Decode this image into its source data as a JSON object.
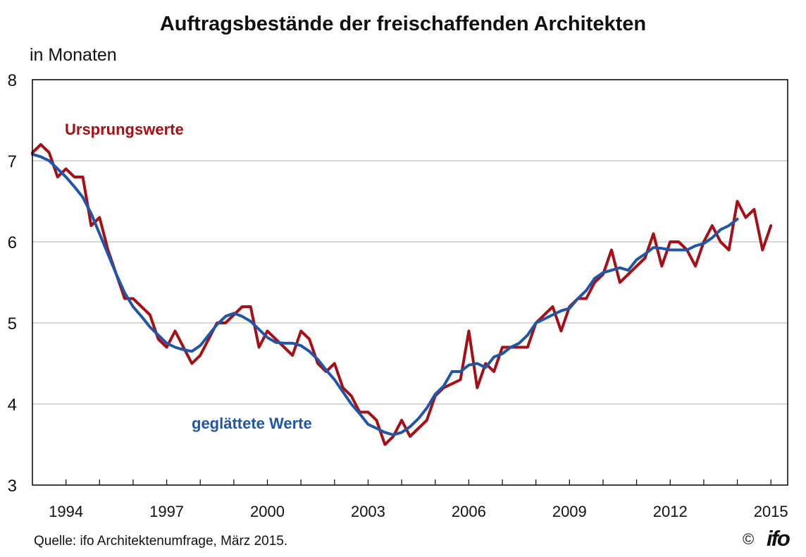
{
  "title": "Auftragsbestände der freischaffenden Architekten",
  "source": "Quelle: ifo Architektenumfrage, März 2015.",
  "copyright": "©",
  "logo": "ifo",
  "colors": {
    "raw": "#a50f15",
    "smoothed": "#1f56a8",
    "grid": "#c8c8c8",
    "axis": "#000000"
  },
  "chart_data": {
    "type": "line",
    "title": "Auftragsbestände der freischaffenden Architekten",
    "ylabel": "in Monaten",
    "xlabel": "",
    "ylim": [
      3,
      8
    ],
    "xlim": [
      1993.0,
      2015.5
    ],
    "yticks": [
      "3",
      "4",
      "5",
      "6",
      "7",
      "8"
    ],
    "xticks": [
      "1994",
      "1997",
      "2000",
      "2003",
      "2006",
      "2009",
      "2012",
      "2015"
    ],
    "grid": "horizontal",
    "series": [
      {
        "name": "Ursprungswerte",
        "color": "#a50f15",
        "x": [
          1993.0,
          1993.25,
          1993.5,
          1993.75,
          1994.0,
          1994.25,
          1994.5,
          1994.75,
          1995.0,
          1995.25,
          1995.5,
          1995.75,
          1996.0,
          1996.25,
          1996.5,
          1996.75,
          1997.0,
          1997.25,
          1997.5,
          1997.75,
          1998.0,
          1998.25,
          1998.5,
          1998.75,
          1999.0,
          1999.25,
          1999.5,
          1999.75,
          2000.0,
          2000.25,
          2000.5,
          2000.75,
          2001.0,
          2001.25,
          2001.5,
          2001.75,
          2002.0,
          2002.25,
          2002.5,
          2002.75,
          2003.0,
          2003.25,
          2003.5,
          2003.75,
          2004.0,
          2004.25,
          2004.5,
          2004.75,
          2005.0,
          2005.25,
          2005.5,
          2005.75,
          2006.0,
          2006.25,
          2006.5,
          2006.75,
          2007.0,
          2007.25,
          2007.5,
          2007.75,
          2008.0,
          2008.25,
          2008.5,
          2008.75,
          2009.0,
          2009.25,
          2009.5,
          2009.75,
          2010.0,
          2010.25,
          2010.5,
          2010.75,
          2011.0,
          2011.25,
          2011.5,
          2011.75,
          2012.0,
          2012.25,
          2012.5,
          2012.75,
          2013.0,
          2013.25,
          2013.5,
          2013.75,
          2014.0,
          2014.25,
          2014.5,
          2014.75,
          2015.0
        ],
        "y": [
          7.1,
          7.2,
          7.1,
          6.8,
          6.9,
          6.8,
          6.8,
          6.2,
          6.3,
          5.9,
          5.6,
          5.3,
          5.3,
          5.2,
          5.1,
          4.8,
          4.7,
          4.9,
          4.7,
          4.5,
          4.6,
          4.8,
          5.0,
          5.0,
          5.1,
          5.2,
          5.2,
          4.7,
          4.9,
          4.8,
          4.7,
          4.6,
          4.9,
          4.8,
          4.5,
          4.4,
          4.5,
          4.2,
          4.1,
          3.9,
          3.9,
          3.8,
          3.5,
          3.6,
          3.8,
          3.6,
          3.7,
          3.8,
          4.1,
          4.2,
          4.25,
          4.3,
          4.9,
          4.2,
          4.5,
          4.4,
          4.7,
          4.7,
          4.7,
          4.7,
          5.0,
          5.1,
          5.2,
          4.9,
          5.2,
          5.3,
          5.3,
          5.5,
          5.6,
          5.9,
          5.5,
          5.6,
          5.7,
          5.8,
          6.1,
          5.7,
          6.0,
          6.0,
          5.9,
          5.7,
          6.0,
          6.2,
          6.0,
          5.9,
          6.5,
          6.3,
          6.4,
          5.9,
          6.2
        ]
      },
      {
        "name": "geglättete Werte",
        "color": "#1f56a8",
        "x": [
          1993.0,
          1993.25,
          1993.5,
          1993.75,
          1994.0,
          1994.25,
          1994.5,
          1994.75,
          1995.0,
          1995.25,
          1995.5,
          1995.75,
          1996.0,
          1996.25,
          1996.5,
          1996.75,
          1997.0,
          1997.25,
          1997.5,
          1997.75,
          1998.0,
          1998.25,
          1998.5,
          1998.75,
          1999.0,
          1999.25,
          1999.5,
          1999.75,
          2000.0,
          2000.25,
          2000.5,
          2000.75,
          2001.0,
          2001.25,
          2001.5,
          2001.75,
          2002.0,
          2002.25,
          2002.5,
          2002.75,
          2003.0,
          2003.25,
          2003.5,
          2003.75,
          2004.0,
          2004.25,
          2004.5,
          2004.75,
          2005.0,
          2005.25,
          2005.5,
          2005.75,
          2006.0,
          2006.25,
          2006.5,
          2006.75,
          2007.0,
          2007.25,
          2007.5,
          2007.75,
          2008.0,
          2008.25,
          2008.5,
          2008.75,
          2009.0,
          2009.25,
          2009.5,
          2009.75,
          2010.0,
          2010.25,
          2010.5,
          2010.75,
          2011.0,
          2011.25,
          2011.5,
          2011.75,
          2012.0,
          2012.25,
          2012.5,
          2012.75,
          2013.0,
          2013.25,
          2013.5,
          2013.75,
          2014.0
        ],
        "y": [
          7.08,
          7.05,
          7.0,
          6.9,
          6.8,
          6.68,
          6.55,
          6.35,
          6.1,
          5.85,
          5.6,
          5.37,
          5.2,
          5.08,
          4.95,
          4.85,
          4.75,
          4.7,
          4.67,
          4.65,
          4.72,
          4.85,
          4.98,
          5.08,
          5.12,
          5.08,
          5.02,
          4.92,
          4.82,
          4.76,
          4.75,
          4.75,
          4.72,
          4.65,
          4.55,
          4.42,
          4.3,
          4.15,
          4.0,
          3.88,
          3.75,
          3.7,
          3.65,
          3.62,
          3.65,
          3.72,
          3.82,
          3.95,
          4.12,
          4.22,
          4.4,
          4.4,
          4.48,
          4.5,
          4.45,
          4.58,
          4.62,
          4.7,
          4.75,
          4.85,
          5.0,
          5.05,
          5.1,
          5.15,
          5.18,
          5.3,
          5.4,
          5.55,
          5.62,
          5.65,
          5.68,
          5.65,
          5.78,
          5.85,
          5.93,
          5.92,
          5.9,
          5.9,
          5.9,
          5.95,
          5.98,
          6.05,
          6.15,
          6.2,
          6.28
        ]
      }
    ],
    "annotations": [
      "Ursprungswerte",
      "geglättete Werte"
    ]
  }
}
